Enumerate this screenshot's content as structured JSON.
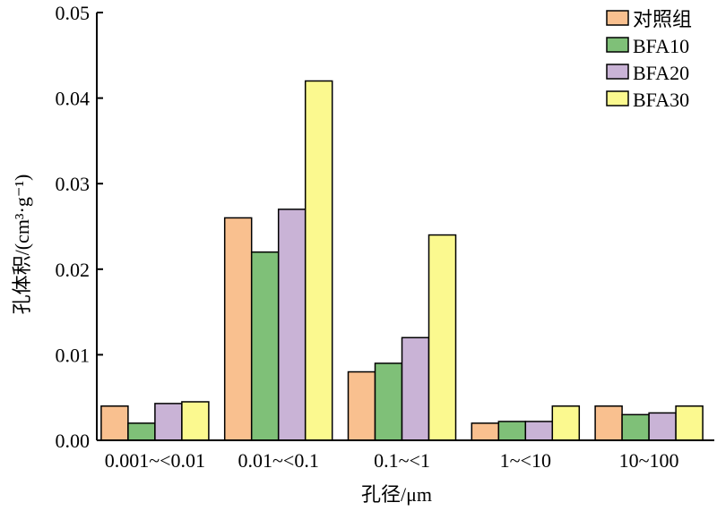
{
  "chart_data": {
    "type": "bar",
    "categories": [
      "0.001~<0.01",
      "0.01~<0.1",
      "0.1~<1",
      "1~<10",
      "10~100"
    ],
    "series": [
      {
        "name": "对照组",
        "color": "#f9c08f",
        "values": [
          0.004,
          0.026,
          0.008,
          0.002,
          0.004
        ]
      },
      {
        "name": "BFA10",
        "color": "#7fc078",
        "values": [
          0.002,
          0.022,
          0.009,
          0.0022,
          0.003
        ]
      },
      {
        "name": "BFA20",
        "color": "#c9b3d6",
        "values": [
          0.0043,
          0.027,
          0.012,
          0.0022,
          0.0032
        ]
      },
      {
        "name": "BFA30",
        "color": "#fbf98f",
        "values": [
          0.0045,
          0.042,
          0.024,
          0.004,
          0.004
        ]
      }
    ],
    "xlabel": "孔径/μm",
    "ylabel": "孔体积/(cm³·g⁻¹)",
    "ylim": [
      0,
      0.05
    ],
    "yticks": [
      "0.00",
      "0.01",
      "0.02",
      "0.03",
      "0.04",
      "0.05"
    ],
    "grid": false,
    "legend_position": "top-right"
  }
}
